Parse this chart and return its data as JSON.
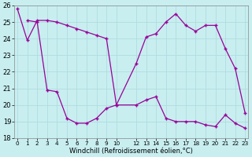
{
  "xlabel": "Windchill (Refroidissement éolien,°C)",
  "bg_color": "#c8eef0",
  "grid_color": "#b0dde0",
  "line_color": "#990099",
  "x_ticks": [
    0,
    1,
    2,
    3,
    4,
    5,
    6,
    7,
    8,
    9,
    10,
    12,
    13,
    14,
    15,
    16,
    17,
    18,
    19,
    20,
    21,
    22,
    23
  ],
  "ylim": [
    18,
    26
  ],
  "yticks": [
    18,
    19,
    20,
    21,
    22,
    23,
    24,
    25,
    26
  ],
  "series1_x": [
    0,
    1,
    2,
    3,
    4,
    5,
    6,
    7,
    8,
    9,
    10,
    12,
    13,
    14,
    15,
    16,
    17,
    18,
    19,
    20,
    21,
    22,
    23
  ],
  "series1_y": [
    25.8,
    23.9,
    25.1,
    25.1,
    25.0,
    24.8,
    24.6,
    24.4,
    24.2,
    24.0,
    20.0,
    22.5,
    24.1,
    24.3,
    25.0,
    25.5,
    24.8,
    24.45,
    24.8,
    24.8,
    23.4,
    22.2,
    19.5
  ],
  "series2_x": [
    1,
    2,
    3,
    4,
    5,
    6,
    7,
    8,
    9,
    10,
    12,
    13,
    14,
    15,
    16,
    17,
    18,
    19,
    20,
    21,
    22,
    23
  ],
  "series2_y": [
    25.1,
    25.0,
    20.9,
    20.8,
    19.2,
    18.9,
    18.9,
    19.2,
    19.8,
    20.0,
    20.0,
    20.3,
    20.5,
    19.2,
    19.0,
    19.0,
    19.0,
    18.8,
    18.7,
    19.4,
    18.9,
    18.6
  ]
}
